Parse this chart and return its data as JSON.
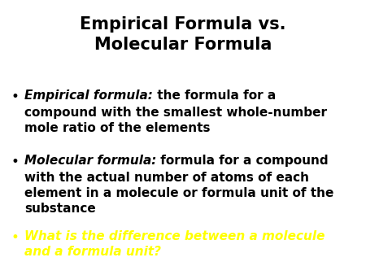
{
  "title_line1": "Empirical Formula vs.",
  "title_line2": "Molecular Formula",
  "title_fontsize": 15,
  "title_color": "#000000",
  "background_color": "#ffffff",
  "bullet_symbol": "•",
  "body_fontsize": 11.0,
  "fig_width": 4.5,
  "fig_height": 3.38,
  "fig_dpi": 100,
  "bullet_items": [
    {
      "italic_part": "Empirical formula:",
      "normal_part": " the formula for a\ncompound with the smallest whole-number\nmole ratio of the elements",
      "color": "#000000",
      "bullet_color": "#000000"
    },
    {
      "italic_part": "Molecular formula:",
      "normal_part": " formula for a compound\nwith the actual number of atoms of each\nelement in a molecule or formula unit of the\nsubstance",
      "color": "#000000",
      "bullet_color": "#000000"
    },
    {
      "italic_part": "What is the difference between a molecule\nand a formula unit?",
      "normal_part": "",
      "color": "#ffff00",
      "bullet_color": "#ffff00"
    }
  ]
}
